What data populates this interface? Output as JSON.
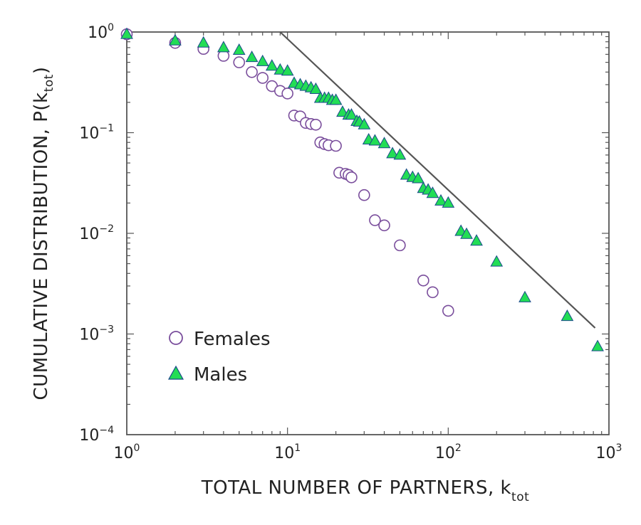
{
  "chart_data": {
    "type": "scatter",
    "scale": {
      "x": "log",
      "y": "log"
    },
    "xlim": [
      1,
      1000
    ],
    "ylim": [
      0.0001,
      1
    ],
    "xlabel": {
      "text": "TOTAL NUMBER OF PARTNERS, k",
      "sub": "tot"
    },
    "ylabel": {
      "text": "CUMULATIVE DISTRIBUTION, P(k",
      "sub": "tot",
      "close": ")"
    },
    "x_ticks": [
      {
        "base": "10",
        "exp": "0",
        "value": 1
      },
      {
        "base": "10",
        "exp": "1",
        "value": 10
      },
      {
        "base": "10",
        "exp": "2",
        "value": 100
      },
      {
        "base": "10",
        "exp": "3",
        "value": 1000
      }
    ],
    "y_ticks": [
      {
        "base": "10",
        "exp": "0",
        "value": 1
      },
      {
        "base": "10",
        "exp": "−1",
        "value": 0.1
      },
      {
        "base": "10",
        "exp": "−2",
        "value": 0.01
      },
      {
        "base": "10",
        "exp": "−3",
        "value": 0.001
      },
      {
        "base": "10",
        "exp": "−4",
        "value": 0.0001
      }
    ],
    "series": [
      {
        "name": "Females",
        "marker": "circle",
        "color": "#7a4e9c",
        "fill": "#ffffff",
        "points": [
          [
            1,
            0.95
          ],
          [
            2,
            0.78
          ],
          [
            3,
            0.68
          ],
          [
            4,
            0.58
          ],
          [
            5,
            0.5
          ],
          [
            6,
            0.4
          ],
          [
            7,
            0.35
          ],
          [
            8,
            0.29
          ],
          [
            9,
            0.26
          ],
          [
            10,
            0.245
          ],
          [
            11,
            0.148
          ],
          [
            12,
            0.145
          ],
          [
            13,
            0.125
          ],
          [
            14,
            0.122
          ],
          [
            15,
            0.12
          ],
          [
            16,
            0.08
          ],
          [
            17,
            0.077
          ],
          [
            18,
            0.075
          ],
          [
            20,
            0.074
          ],
          [
            21,
            0.04
          ],
          [
            23,
            0.039
          ],
          [
            24,
            0.038
          ],
          [
            25,
            0.036
          ],
          [
            30,
            0.024
          ],
          [
            35,
            0.0135
          ],
          [
            40,
            0.012
          ],
          [
            50,
            0.0076
          ],
          [
            70,
            0.0034
          ],
          [
            80,
            0.0026
          ],
          [
            100,
            0.0017
          ]
        ]
      },
      {
        "name": "Males",
        "marker": "triangle",
        "color": "#1a4a8a",
        "fill": "#22dd55",
        "points": [
          [
            1,
            0.95
          ],
          [
            2,
            0.82
          ],
          [
            3,
            0.78
          ],
          [
            4,
            0.7
          ],
          [
            5,
            0.66
          ],
          [
            6,
            0.56
          ],
          [
            7,
            0.51
          ],
          [
            8,
            0.46
          ],
          [
            9,
            0.42
          ],
          [
            10,
            0.41
          ],
          [
            11,
            0.31
          ],
          [
            12,
            0.3
          ],
          [
            13,
            0.29
          ],
          [
            14,
            0.28
          ],
          [
            15,
            0.27
          ],
          [
            16,
            0.22
          ],
          [
            17,
            0.22
          ],
          [
            18,
            0.22
          ],
          [
            19,
            0.21
          ],
          [
            20,
            0.21
          ],
          [
            22,
            0.16
          ],
          [
            24,
            0.15
          ],
          [
            25,
            0.15
          ],
          [
            27,
            0.13
          ],
          [
            28,
            0.128
          ],
          [
            30,
            0.12
          ],
          [
            32,
            0.085
          ],
          [
            35,
            0.083
          ],
          [
            40,
            0.078
          ],
          [
            45,
            0.062
          ],
          [
            50,
            0.06
          ],
          [
            55,
            0.038
          ],
          [
            60,
            0.036
          ],
          [
            65,
            0.035
          ],
          [
            70,
            0.028
          ],
          [
            75,
            0.027
          ],
          [
            80,
            0.025
          ],
          [
            90,
            0.021
          ],
          [
            100,
            0.02
          ],
          [
            120,
            0.0105
          ],
          [
            130,
            0.0098
          ],
          [
            150,
            0.0084
          ],
          [
            200,
            0.0052
          ],
          [
            300,
            0.0023
          ],
          [
            550,
            0.0015
          ],
          [
            850,
            0.00075
          ]
        ]
      }
    ],
    "reference_line": {
      "from": [
        9,
        1.0
      ],
      "to": [
        820,
        0.00115
      ],
      "color": "#555555"
    }
  }
}
